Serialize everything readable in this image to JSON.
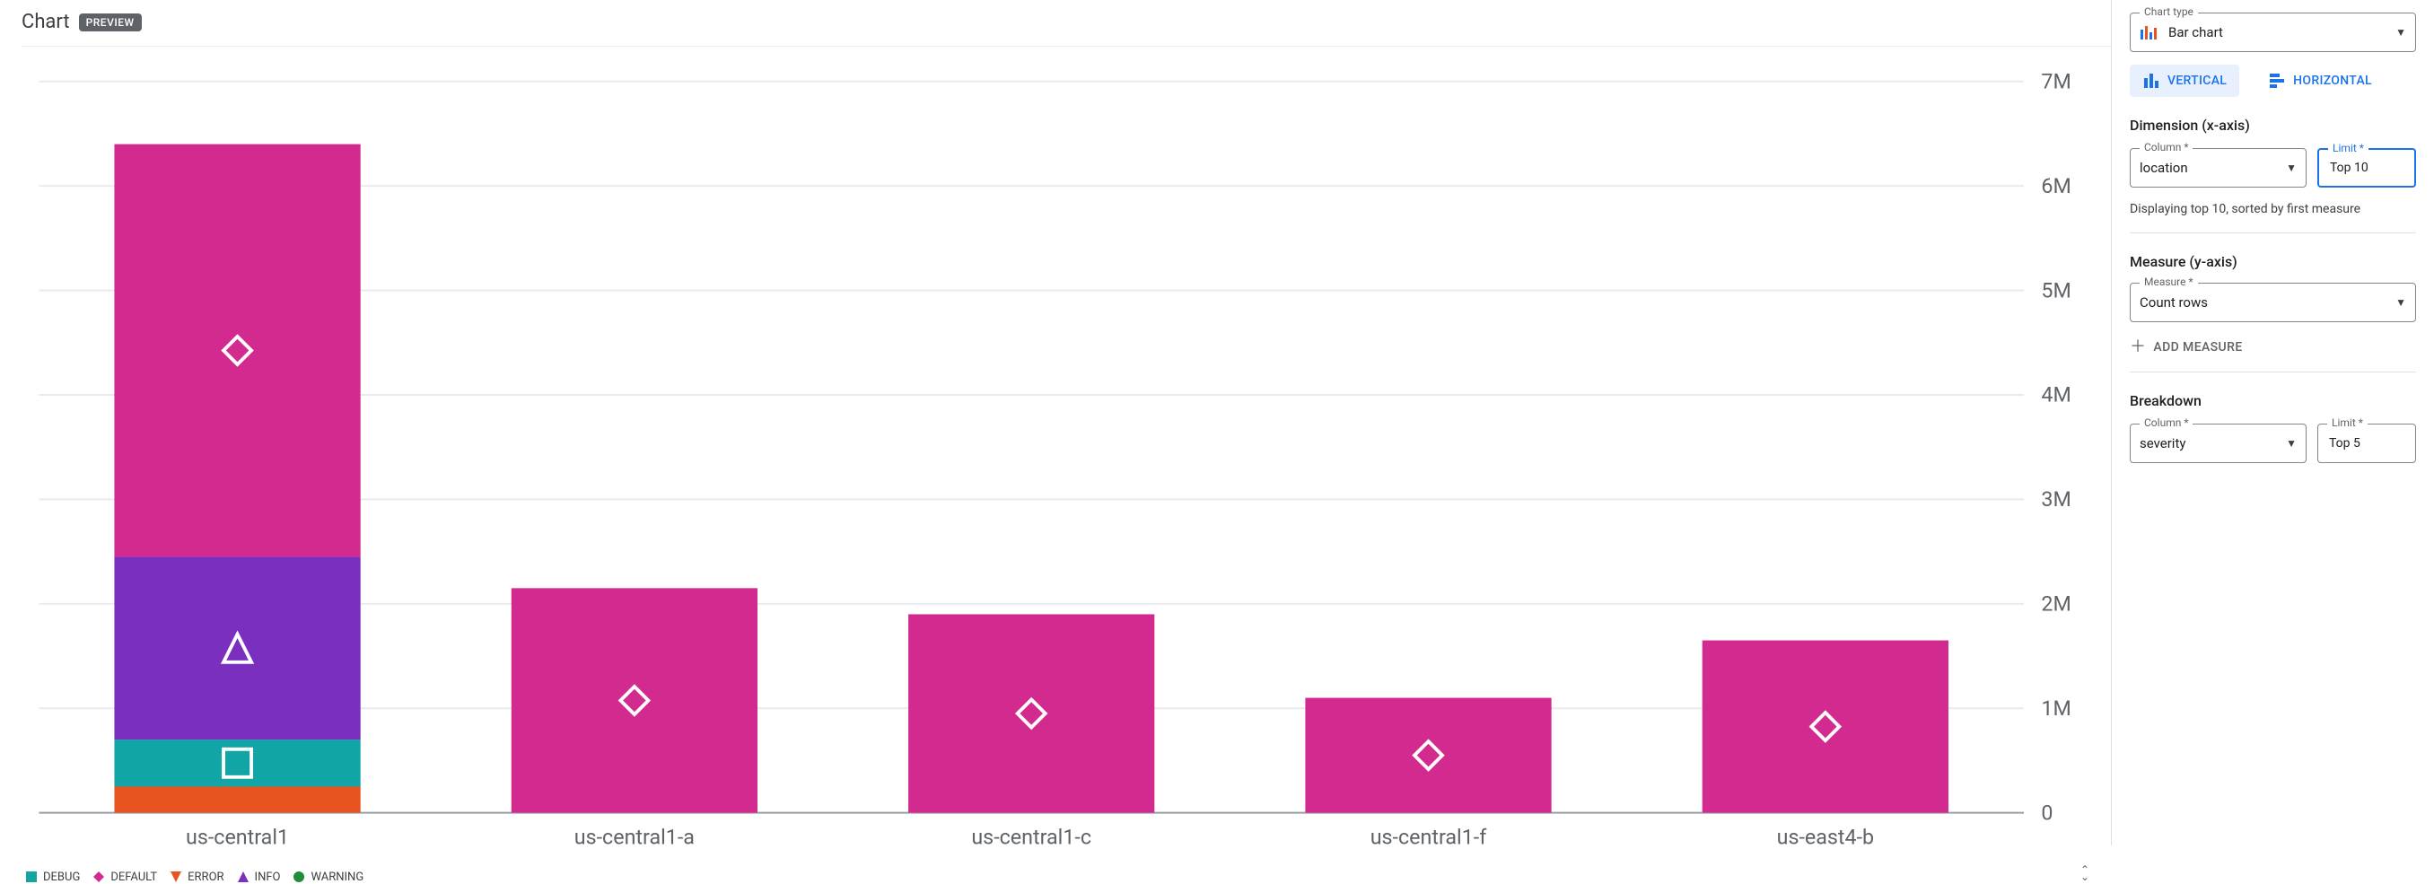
{
  "header": {
    "title": "Chart",
    "badge": "PREVIEW"
  },
  "chart": {
    "type": "stacked-bar",
    "y": {
      "min": 0,
      "max": 7000000,
      "ticks": [
        0,
        1000000,
        2000000,
        3000000,
        4000000,
        5000000,
        6000000,
        7000000
      ],
      "tick_labels": [
        "0",
        "1M",
        "2M",
        "3M",
        "4M",
        "5M",
        "6M",
        "7M"
      ],
      "grid_color": "#e8eaed",
      "axis_color": "#9aa0a6",
      "label_color": "#5f6368"
    },
    "categories": [
      "us-central1",
      "us-central1-a",
      "us-central1-c",
      "us-central1-f",
      "us-east4-b"
    ],
    "series_order": [
      "ERROR",
      "DEBUG",
      "INFO",
      "DEFAULT",
      "WARNING"
    ],
    "bars": [
      {
        "ERROR": 250000,
        "DEBUG": 450000,
        "INFO": 1750000,
        "DEFAULT": 3950000,
        "WARNING": 0
      },
      {
        "ERROR": 0,
        "DEBUG": 0,
        "INFO": 0,
        "DEFAULT": 2150000,
        "WARNING": 0
      },
      {
        "ERROR": 0,
        "DEBUG": 0,
        "INFO": 0,
        "DEFAULT": 1900000,
        "WARNING": 0
      },
      {
        "ERROR": 0,
        "DEBUG": 0,
        "INFO": 0,
        "DEFAULT": 1100000,
        "WARNING": 0
      },
      {
        "ERROR": 0,
        "DEBUG": 0,
        "INFO": 0,
        "DEFAULT": 1650000,
        "WARNING": 0
      }
    ],
    "colors": {
      "DEBUG": "#12a5a5",
      "DEFAULT": "#d22a8f",
      "ERROR": "#e8531f",
      "INFO": "#7a2fbf",
      "WARNING": "#1f8d3a"
    },
    "markers": {
      "DEBUG": "square",
      "DEFAULT": "diamond",
      "ERROR": "triangle-down",
      "INFO": "triangle-up",
      "WARNING": "circle"
    },
    "show_segment_marker_on": "DEFAULT",
    "extra_markers_bar0": [
      "INFO",
      "DEBUG"
    ],
    "bar_width_ratio": 0.62,
    "background": "#ffffff"
  },
  "legend": [
    "DEBUG",
    "DEFAULT",
    "ERROR",
    "INFO",
    "WARNING"
  ],
  "panel": {
    "chart_type": {
      "label": "Chart type",
      "value": "Bar chart"
    },
    "orientation": {
      "vertical": "VERTICAL",
      "horizontal": "HORIZONTAL",
      "active": "vertical"
    },
    "dimension": {
      "title": "Dimension (x-axis)",
      "column_label": "Column *",
      "column_value": "location",
      "limit_label": "Limit *",
      "limit_value": "Top 10",
      "hint": "Displaying top 10, sorted by first measure"
    },
    "measure": {
      "title": "Measure (y-axis)",
      "label": "Measure *",
      "value": "Count rows",
      "add_label": "ADD MEASURE"
    },
    "breakdown": {
      "title": "Breakdown",
      "column_label": "Column *",
      "column_value": "severity",
      "limit_label": "Limit *",
      "limit_value": "Top 5"
    }
  }
}
